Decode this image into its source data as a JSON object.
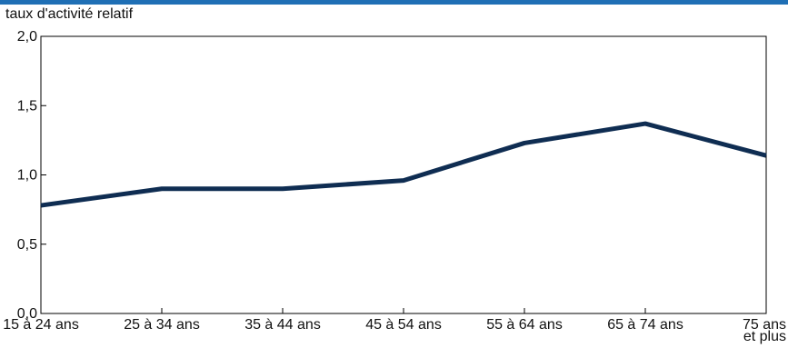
{
  "chart_data": {
    "type": "line",
    "title": "",
    "xlabel": "",
    "ylabel": "taux d'activité relatif",
    "categories": [
      "15 à 24 ans",
      "25 à 34 ans",
      "35 à 44 ans",
      "45 à 54 ans",
      "55 à 64 ans",
      "65 à 74 ans",
      "75 ans et plus"
    ],
    "category_lines": [
      [
        "15 à 24 ans"
      ],
      [
        "25 à 34 ans"
      ],
      [
        "35 à 44 ans"
      ],
      [
        "45 à 54 ans"
      ],
      [
        "55 à 64 ans"
      ],
      [
        "65 à 74 ans"
      ],
      [
        "75 ans",
        "et plus"
      ]
    ],
    "series": [
      {
        "values": [
          0.78,
          0.9,
          0.9,
          0.96,
          1.23,
          1.37,
          1.14
        ]
      }
    ],
    "ylim": [
      0,
      2
    ],
    "yticks": [
      0,
      0.5,
      1.0,
      1.5,
      2.0
    ],
    "ytick_labels": [
      "0,0",
      "0,5",
      "1,0",
      "1,5",
      "2,0"
    ],
    "grid": false,
    "legend": "none"
  },
  "colors": {
    "line": "#0f2d52",
    "accent_rule": "#1f6fb5",
    "axis": "#000000"
  }
}
